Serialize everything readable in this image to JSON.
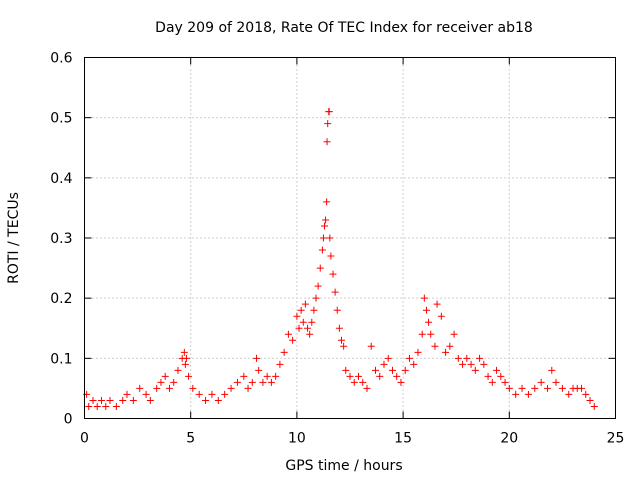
{
  "chart_data": {
    "type": "scatter",
    "title": "Day 209 of 2018, Rate Of TEC Index for receiver ab18",
    "xlabel": "GPS time / hours",
    "ylabel": "ROTI / TECUs",
    "xlim": [
      0,
      25
    ],
    "ylim": [
      0,
      0.6
    ],
    "xticks": [
      "0",
      "5",
      "10",
      "15",
      "20",
      "25"
    ],
    "yticks": [
      "0",
      "0.1",
      "0.2",
      "0.3",
      "0.4",
      "0.5",
      "0.6"
    ],
    "grid": true,
    "marker": "+",
    "color": "#ff0000",
    "series": [
      {
        "x": [
          0.1,
          0.2,
          0.4,
          0.6,
          0.8,
          1.0,
          1.2,
          1.5,
          1.8,
          2.0,
          2.3,
          2.6,
          2.9,
          3.1,
          3.4,
          3.6,
          3.8,
          4.0,
          4.2,
          4.4,
          4.6,
          4.7,
          4.75,
          4.8,
          4.9,
          5.1,
          5.4,
          5.7,
          6.0,
          6.3,
          6.6,
          6.9,
          7.2,
          7.5,
          7.7,
          7.9,
          8.1,
          8.2,
          8.4,
          8.6,
          8.8,
          9.0,
          9.2,
          9.4,
          9.6,
          9.8,
          10.0,
          10.1,
          10.2,
          10.3,
          10.4,
          10.5,
          10.6,
          10.7,
          10.8,
          10.9,
          11.0,
          11.1,
          11.2,
          11.25,
          11.3,
          11.35,
          11.4,
          11.42,
          11.45,
          11.5,
          11.52,
          11.55,
          11.6,
          11.7,
          11.8,
          11.9,
          12.0,
          12.1,
          12.2,
          12.3,
          12.5,
          12.7,
          12.9,
          13.1,
          13.3,
          13.5,
          13.7,
          13.9,
          14.1,
          14.3,
          14.5,
          14.7,
          14.9,
          15.1,
          15.3,
          15.5,
          15.7,
          15.9,
          16.0,
          16.1,
          16.2,
          16.3,
          16.5,
          16.6,
          16.8,
          17.0,
          17.2,
          17.4,
          17.6,
          17.8,
          18.0,
          18.2,
          18.4,
          18.6,
          18.8,
          19.0,
          19.2,
          19.4,
          19.6,
          19.8,
          20.0,
          20.3,
          20.6,
          20.9,
          21.2,
          21.5,
          21.8,
          22.0,
          22.2,
          22.5,
          22.8,
          23.0,
          23.2,
          23.4,
          23.6,
          23.8,
          24.0
        ],
        "y": [
          0.04,
          0.02,
          0.03,
          0.02,
          0.03,
          0.02,
          0.03,
          0.02,
          0.03,
          0.04,
          0.03,
          0.05,
          0.04,
          0.03,
          0.05,
          0.06,
          0.07,
          0.05,
          0.06,
          0.08,
          0.1,
          0.11,
          0.09,
          0.1,
          0.07,
          0.05,
          0.04,
          0.03,
          0.04,
          0.03,
          0.04,
          0.05,
          0.06,
          0.07,
          0.05,
          0.06,
          0.1,
          0.08,
          0.06,
          0.07,
          0.06,
          0.07,
          0.09,
          0.11,
          0.14,
          0.13,
          0.17,
          0.15,
          0.18,
          0.16,
          0.19,
          0.15,
          0.14,
          0.16,
          0.18,
          0.2,
          0.22,
          0.25,
          0.28,
          0.3,
          0.32,
          0.33,
          0.36,
          0.46,
          0.49,
          0.51,
          0.51,
          0.3,
          0.27,
          0.24,
          0.21,
          0.18,
          0.15,
          0.13,
          0.12,
          0.08,
          0.07,
          0.06,
          0.07,
          0.06,
          0.05,
          0.12,
          0.08,
          0.07,
          0.09,
          0.1,
          0.08,
          0.07,
          0.06,
          0.08,
          0.1,
          0.09,
          0.11,
          0.14,
          0.2,
          0.18,
          0.16,
          0.14,
          0.12,
          0.19,
          0.17,
          0.11,
          0.12,
          0.14,
          0.1,
          0.09,
          0.1,
          0.09,
          0.08,
          0.1,
          0.09,
          0.07,
          0.06,
          0.08,
          0.07,
          0.06,
          0.05,
          0.04,
          0.05,
          0.04,
          0.05,
          0.06,
          0.05,
          0.08,
          0.06,
          0.05,
          0.04,
          0.05,
          0.05,
          0.05,
          0.04,
          0.03,
          0.02
        ]
      }
    ]
  }
}
